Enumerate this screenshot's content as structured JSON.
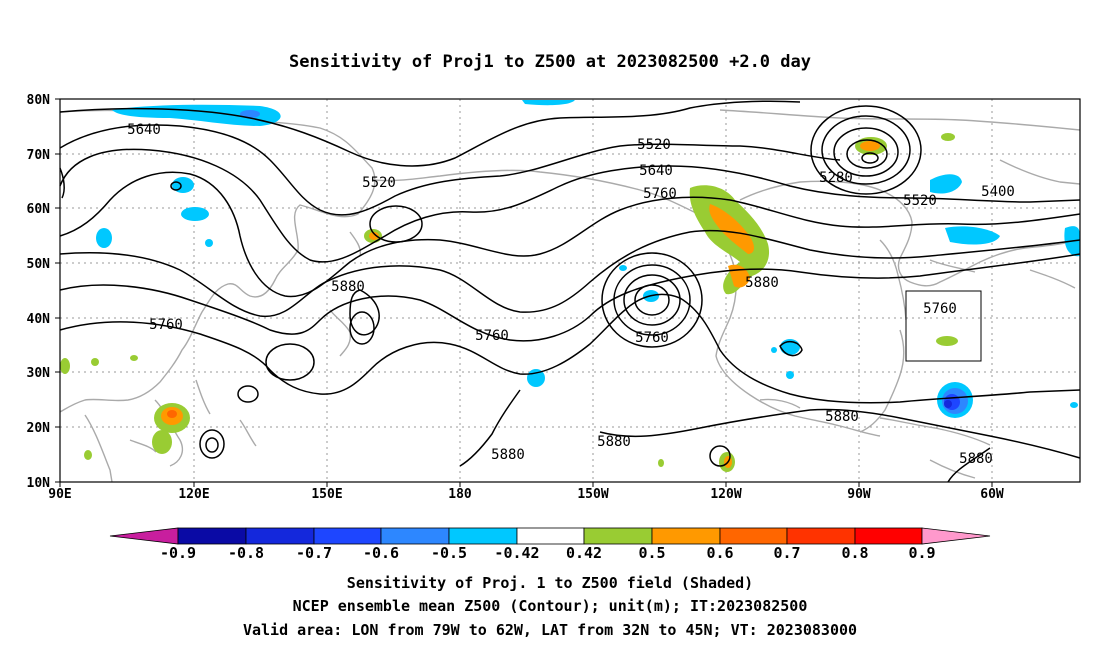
{
  "title": "Sensitivity of Proj1 to Z500 at 2023082500 +2.0 day",
  "axes": {
    "lon_ticks": [
      "90E",
      "120E",
      "150E",
      "180",
      "150W",
      "120W",
      "90W",
      "60W"
    ],
    "lat_ticks": [
      "80N",
      "70N",
      "60N",
      "50N",
      "40N",
      "30N",
      "20N",
      "10N"
    ]
  },
  "contour_labels": [
    "5640",
    "5520",
    "5520",
    "5640",
    "5760",
    "5280",
    "5520",
    "5400",
    "5880",
    "5760",
    "5760",
    "5760",
    "5880",
    "5760",
    "5880",
    "5880",
    "5880",
    "5880"
  ],
  "colorbar": {
    "ticks": [
      "-0.9",
      "-0.8",
      "-0.7",
      "-0.6",
      "-0.5",
      "-0.42",
      "0.42",
      "0.5",
      "0.6",
      "0.7",
      "0.8",
      "0.9"
    ],
    "colors": [
      "#c81e9e",
      "#0a0aa5",
      "#1428dc",
      "#1e46ff",
      "#2d87ff",
      "#00c8ff",
      "#ffffff",
      "#99cc33",
      "#ff9900",
      "#ff6600",
      "#ff3300",
      "#ff0000",
      "#ff99cc"
    ]
  },
  "captions": [
    "Sensitivity of Proj. 1 to Z500 field (Shaded)",
    "NCEP ensemble mean Z500 (Contour); unit(m); IT:2023082500",
    "Valid area: LON from 79W to 62W, LAT from 32N to 45N; VT: 2023083000"
  ],
  "colors": {
    "coast": "#aaaaaa",
    "grid": "#999999",
    "contour": "#000000"
  }
}
